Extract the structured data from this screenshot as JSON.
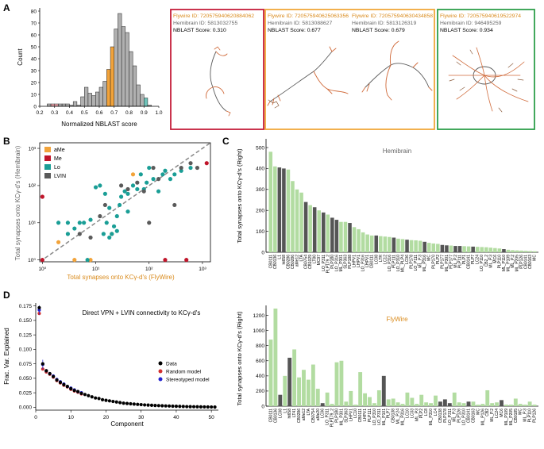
{
  "colors": {
    "gray_bar": "#b0b0b0",
    "aMe": "#f2a33a",
    "Me": "#c0152a",
    "Lo": "#1a9e96",
    "LVIN": "#5a5a5a",
    "green_bar": "#b2dca1",
    "dark_bar": "#555555",
    "flywire_text": "#d98a1b",
    "hemibrain_text": "#666666",
    "card_red": "#c41e3a",
    "card_orange": "#f0a73a",
    "card_green": "#2e9e4a",
    "model_red": "#d32f2f",
    "model_blue": "#2424d0"
  },
  "panel_labels": {
    "a": "A",
    "b": "B",
    "c": "C",
    "d": "D"
  },
  "chart_data": [
    {
      "id": "A",
      "type": "bar",
      "title": "",
      "xlabel": "Normalized NBLAST score",
      "ylabel": "Count",
      "xticks": [
        "0.2",
        "0.3",
        "0.4",
        "0.5",
        "0.6",
        "0.7",
        "0.8",
        "0.9",
        "1.0"
      ],
      "xlim": [
        0.2,
        1.0
      ],
      "ylim": [
        0,
        80
      ],
      "yticks": [
        "0",
        "10",
        "20",
        "30",
        "40",
        "50",
        "60",
        "70",
        "80"
      ],
      "bin_width": 0.025,
      "bins_start": [
        0.25,
        0.275,
        0.3,
        0.325,
        0.35,
        0.375,
        0.4,
        0.425,
        0.45,
        0.475,
        0.5,
        0.525,
        0.55,
        0.575,
        0.6,
        0.625,
        0.65,
        0.675,
        0.7,
        0.725,
        0.75,
        0.775,
        0.8,
        0.825,
        0.85,
        0.875,
        0.9,
        0.925
      ],
      "values": [
        2,
        2,
        2,
        2,
        2,
        2,
        1,
        4,
        1,
        8,
        16,
        11,
        9,
        12,
        16,
        21,
        31,
        50,
        65,
        78,
        67,
        62,
        46,
        34,
        18,
        10,
        7,
        1
      ],
      "highlight": {
        "0.275": "Me",
        "0.3": "Me",
        "0.65": "aMe",
        "0.675": "aMe",
        "0.9": "Lo"
      }
    },
    {
      "id": "B",
      "type": "scatter",
      "xlabel": "Total synapses onto KCγ-d's (FlyWire)",
      "ylabel": "Total synapses onto KCγ-d's (Hemibrain)",
      "scale": "log",
      "xlim_exp": [
        0,
        3
      ],
      "ylim_exp": [
        0,
        3
      ],
      "xticks": [
        "10⁰",
        "10¹",
        "10²",
        "10³"
      ],
      "yticks": [
        "10⁰",
        "10¹",
        "10²",
        "10³"
      ],
      "legend": [
        "aMe",
        "Me",
        "Lo",
        "LVIN"
      ],
      "legend_position": "top-left",
      "diagonal": "dashed",
      "series": [
        {
          "name": "aMe",
          "points": [
            [
              2,
              3
            ],
            [
              4,
              1
            ],
            [
              8,
              1
            ],
            [
              20,
              5
            ],
            [
              50,
              200
            ]
          ]
        },
        {
          "name": "Me",
          "points": [
            [
              1,
              50
            ],
            [
              1,
              1
            ],
            [
              200,
              1
            ],
            [
              500,
              1
            ],
            [
              1200,
              400
            ]
          ]
        },
        {
          "name": "Lo",
          "points": [
            [
              2,
              10
            ],
            [
              3,
              10
            ],
            [
              3,
              5
            ],
            [
              4,
              7
            ],
            [
              5,
              10
            ],
            [
              6,
              10
            ],
            [
              7,
              1
            ],
            [
              8,
              12
            ],
            [
              10,
              90
            ],
            [
              12,
              100
            ],
            [
              14,
              5
            ],
            [
              15,
              60
            ],
            [
              16,
              10
            ],
            [
              18,
              4
            ],
            [
              20,
              5
            ],
            [
              22,
              8
            ],
            [
              25,
              6
            ],
            [
              28,
              30
            ],
            [
              30,
              50
            ],
            [
              35,
              70
            ],
            [
              40,
              60
            ],
            [
              50,
              100
            ],
            [
              60,
              80
            ],
            [
              70,
              200
            ],
            [
              80,
              80
            ],
            [
              90,
              120
            ],
            [
              100,
              300
            ],
            [
              120,
              150
            ],
            [
              150,
              70
            ],
            [
              180,
              200
            ],
            [
              200,
              250
            ],
            [
              250,
              150
            ],
            [
              300,
              200
            ],
            [
              400,
              250
            ],
            [
              600,
              300
            ],
            [
              40,
              20
            ],
            [
              25,
              15
            ],
            [
              18,
              25
            ]
          ]
        },
        {
          "name": "LVIN",
          "points": [
            [
              5,
              5
            ],
            [
              8,
              4
            ],
            [
              12,
              15
            ],
            [
              15,
              30
            ],
            [
              30,
              100
            ],
            [
              40,
              80
            ],
            [
              60,
              120
            ],
            [
              80,
              70
            ],
            [
              100,
              10
            ],
            [
              120,
              300
            ],
            [
              150,
              150
            ],
            [
              300,
              30
            ],
            [
              400,
              300
            ],
            [
              600,
              400
            ],
            [
              800,
              300
            ]
          ]
        }
      ]
    },
    {
      "id": "C-hemibrain",
      "type": "bar",
      "title": "Hemibrain",
      "ylabel": "Total synapses onto KCγ-d's  (Right)",
      "ylim": [
        0,
        500
      ],
      "yticks": [
        "0",
        "100",
        "200",
        "300",
        "400",
        "500"
      ],
      "labels_shown": [
        "CB0111",
        "CB0136",
        "L1",
        "ht658",
        "CB0286",
        "CB0286",
        "aMe12",
        "LTA",
        "CB0754",
        "CB1029",
        "LT80",
        "MC97",
        "LO_P311",
        "PLP179_2",
        "PLP180",
        "LO_P316",
        "ML_P301",
        "SLP363",
        "PLP188",
        "LHPV1",
        "LHPV1",
        "LO_P316",
        "LHPV1",
        "CB0111",
        "LC08",
        "LTR",
        "LC12",
        "LO_P316",
        "PLP111",
        "LO_P310",
        "ML_PLP4",
        "LC06",
        "PLP178",
        "LO_P111",
        "ML_P.3",
        "ML_P316",
        "MC",
        "PLP170",
        "PLP2",
        "PLP177",
        "ML_P301",
        "PLP177",
        "ML_P.2",
        "PLP111",
        "PLP1",
        "CB0141",
        "PLP7",
        "LC24",
        "LO_P110",
        "CB2_2",
        "ML_P.3",
        "MC6",
        "PLP110",
        "ML_P110",
        "ML_P109",
        "ML_P.2",
        "ML_P205",
        "PLP126",
        "CB0141",
        "CB0163",
        "MC"
      ],
      "values": [
        480,
        410,
        405,
        400,
        395,
        340,
        300,
        285,
        240,
        225,
        215,
        200,
        190,
        180,
        165,
        155,
        145,
        145,
        140,
        120,
        110,
        95,
        85,
        80,
        80,
        77,
        75,
        73,
        70,
        65,
        63,
        60,
        58,
        57,
        55,
        50,
        45,
        42,
        40,
        35,
        33,
        32,
        30,
        30,
        29,
        28,
        27,
        26,
        25,
        24,
        22,
        20,
        18,
        15,
        12,
        10,
        9,
        8,
        7,
        6,
        5
      ],
      "is_lvin": [
        false,
        false,
        true,
        true,
        false,
        false,
        false,
        false,
        true,
        false,
        true,
        false,
        true,
        false,
        true,
        true,
        false,
        false,
        true,
        false,
        false,
        false,
        false,
        false,
        true,
        false,
        false,
        false,
        true,
        false,
        false,
        true,
        false,
        false,
        false,
        true,
        false,
        false,
        false,
        true,
        true,
        false,
        true,
        true,
        false,
        false,
        true,
        false,
        false,
        false,
        false,
        false,
        false,
        true,
        false,
        false,
        false,
        false,
        false,
        false,
        false
      ]
    },
    {
      "id": "C-flywire",
      "type": "bar",
      "title": "FlyWire",
      "ylabel": "Total synapses onto KCγ-d's  (Right)",
      "ylim": [
        0,
        1300
      ],
      "yticks": [
        "0",
        "200",
        "400",
        "600",
        "800",
        "1000",
        "1200"
      ],
      "labels_shown": [
        "CB0111",
        "CB0136",
        "LC08",
        "L1",
        "ht658",
        "LT41",
        "CB0286",
        "aMe12",
        "LTA",
        "CB0754",
        "aMe20",
        "LC06",
        "LO_P311",
        "PLP179_2",
        "PLP180",
        "ML_P301",
        "SLP363",
        "LHPV1",
        "LC10",
        "CB0111",
        "LHPV1",
        "PLP111",
        "LO_P310",
        "LO_P311",
        "ML_P101",
        "PLP7",
        "CB0138",
        "ML_P.24",
        "ML_P316",
        "LC10",
        "LC03",
        "ML_P3",
        "PLP2",
        "LC8",
        "ML_P310",
        "LC4",
        "CB0138",
        "PLP178",
        "LO_P311",
        "ML_P.3",
        "PLP126",
        "LO_P310",
        "CB0141",
        "CB0163",
        "MC",
        "ML_P126",
        "CB2",
        "ML_P.2",
        "LC24",
        "MC6",
        "ML_P109",
        "ML_P205",
        "CB0185",
        "MC",
        "ML_P.3",
        "PLP110",
        "PLP126"
      ],
      "values": [
        880,
        1290,
        150,
        400,
        640,
        750,
        380,
        480,
        350,
        550,
        230,
        40,
        180,
        30,
        580,
        600,
        60,
        200,
        20,
        450,
        170,
        120,
        40,
        210,
        400,
        90,
        100,
        50,
        30,
        180,
        110,
        30,
        150,
        50,
        40,
        140,
        60,
        90,
        40,
        180,
        50,
        40,
        60,
        60,
        20,
        30,
        210,
        40,
        50,
        80,
        20,
        20,
        100,
        30,
        20,
        60,
        20
      ],
      "is_lvin": [
        false,
        false,
        true,
        false,
        true,
        false,
        false,
        false,
        false,
        false,
        false,
        true,
        false,
        false,
        false,
        false,
        false,
        false,
        false,
        false,
        false,
        false,
        false,
        false,
        true,
        false,
        false,
        false,
        false,
        false,
        false,
        false,
        false,
        false,
        false,
        false,
        true,
        true,
        true,
        false,
        false,
        false,
        true,
        false,
        false,
        false,
        false,
        false,
        false,
        true,
        false,
        false,
        false,
        false,
        false,
        false,
        false
      ]
    },
    {
      "id": "D",
      "type": "scatter",
      "title": "Direct VPN + LVIN connectivity to KCγ-d's",
      "xlabel": "Component",
      "ylabel": "Frac. Var. Explained",
      "xlim": [
        0,
        52
      ],
      "ylim": [
        -0.005,
        0.18
      ],
      "xticks": [
        "0",
        "10",
        "20",
        "30",
        "40",
        "50"
      ],
      "yticks": [
        "0.000",
        "0.025",
        "0.050",
        "0.075",
        "0.100",
        "0.125",
        "0.150",
        "0.175"
      ],
      "legend": [
        "Data",
        "Random model",
        "Stereotyped model"
      ],
      "legend_position": "center-right",
      "series": [
        {
          "name": "Data",
          "x_start": 1,
          "values": [
            0.172,
            0.075,
            0.063,
            0.058,
            0.053,
            0.047,
            0.043,
            0.039,
            0.036,
            0.032,
            0.029,
            0.027,
            0.024,
            0.022,
            0.02,
            0.018,
            0.016,
            0.015,
            0.013,
            0.012,
            0.011,
            0.01,
            0.009,
            0.008,
            0.007,
            0.0065,
            0.006,
            0.0055,
            0.005,
            0.0045,
            0.004,
            0.0037,
            0.0034,
            0.0031,
            0.0028,
            0.0025,
            0.0023,
            0.0021,
            0.0019,
            0.0017,
            0.0015,
            0.0013,
            0.0011,
            0.001,
            0.0009,
            0.0008,
            0.0007,
            0.0006,
            0.0005,
            0.0004,
            0.0003
          ]
        },
        {
          "name": "Random model",
          "x_start": 1,
          "values": [
            0.162,
            0.066,
            0.061,
            0.057,
            0.052,
            0.046,
            0.042,
            0.038,
            0.035,
            0.031,
            0.028,
            0.026,
            0.023
          ]
        },
        {
          "name": "Stereotyped model",
          "x_start": 1,
          "values": [
            0.168,
            0.074,
            0.063,
            0.058,
            0.054,
            0.048,
            0.044,
            0.04,
            0.036,
            0.033,
            0.03,
            0.027,
            0.025
          ]
        }
      ]
    }
  ],
  "neuron_cards": [
    {
      "flywire_id": "Flywire ID: 720575940620884062",
      "hemibrain_id": "Hemibrain ID: 5813032755",
      "score": "NBLAST Score: 0.310"
    },
    {
      "flywire_id": "Flywire ID: 720575940625063356",
      "hemibrain_id": "Hemibrain ID: 5813088627",
      "score": "NBLAST Score: 0.677"
    },
    {
      "flywire_id": "Flywire ID: 720575940630434858",
      "hemibrain_id": "Hemibrain ID: 5813126319",
      "score": "NBLAST Score: 0.679"
    },
    {
      "flywire_id": "Flywire ID: 720575940619522974",
      "hemibrain_id": "Hemibrain ID: 946495259",
      "score": "NBLAST Score: 0.934"
    }
  ]
}
